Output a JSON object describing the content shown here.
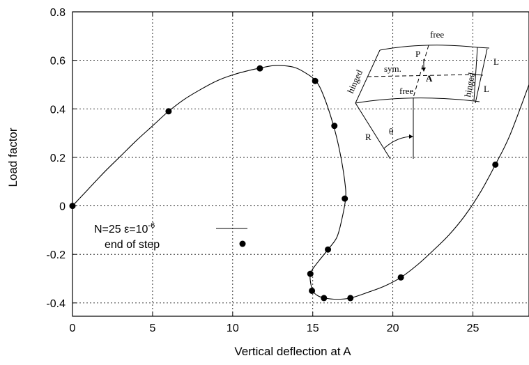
{
  "chart_data": {
    "type": "line",
    "xlabel": "Vertical deflection at A",
    "ylabel": "Load factor",
    "xlim": [
      0,
      28.5
    ],
    "ylim": [
      -0.455,
      0.8
    ],
    "xticks": [
      0,
      5,
      10,
      15,
      20,
      25
    ],
    "yticks": [
      -0.4,
      -0.2,
      0,
      0.2,
      0.4,
      0.6,
      0.8
    ],
    "ytick_labels": [
      "-0.4",
      "-0.2",
      "0",
      "0.2",
      "0.4",
      "0.6",
      "0.8"
    ],
    "grid": true,
    "series": [
      {
        "name": "N=25 ε=10-6",
        "style": "line",
        "x": [
          0,
          1.0,
          2.0,
          3.0,
          4.0,
          5.0,
          6.0,
          7.0,
          8.0,
          9.0,
          10.0,
          11.0,
          11.7,
          12.5,
          13.2,
          13.9,
          14.5,
          15.2,
          15.7,
          16.3,
          16.7,
          17.0,
          17.05,
          16.8,
          16.5,
          15.95,
          15.4,
          15.0,
          14.85,
          14.85,
          15.0,
          15.3,
          15.75,
          16.5,
          17.35,
          18.5,
          19.5,
          20.5,
          21.5,
          22.5,
          23.5,
          24.5,
          25.5,
          26.4,
          27.3,
          28.5
        ],
        "y": [
          0,
          0.07,
          0.14,
          0.205,
          0.27,
          0.33,
          0.39,
          0.44,
          0.48,
          0.515,
          0.54,
          0.558,
          0.568,
          0.578,
          0.578,
          0.57,
          0.55,
          0.515,
          0.45,
          0.33,
          0.22,
          0.1,
          0.03,
          -0.06,
          -0.13,
          -0.18,
          -0.225,
          -0.26,
          -0.28,
          -0.31,
          -0.35,
          -0.37,
          -0.38,
          -0.385,
          -0.38,
          -0.355,
          -0.33,
          -0.295,
          -0.245,
          -0.185,
          -0.12,
          -0.04,
          0.06,
          0.17,
          0.29,
          0.5
        ]
      },
      {
        "name": "end of step",
        "style": "markers",
        "x": [
          0,
          6.0,
          11.7,
          15.15,
          16.35,
          17.0,
          15.95,
          14.85,
          14.95,
          15.7,
          17.35,
          20.5,
          26.4
        ],
        "y": [
          0,
          0.39,
          0.567,
          0.515,
          0.33,
          0.03,
          -0.18,
          -0.28,
          -0.35,
          -0.38,
          -0.38,
          -0.295,
          0.17
        ]
      }
    ],
    "legend": {
      "position": "lower-left",
      "line_label": "N=25 ε=10",
      "line_label_exponent": "-6",
      "marker_label": "end of step"
    },
    "inset": {
      "labels": {
        "free_top": "free",
        "free_bottom": "free",
        "hinged_left": "hinged",
        "hinged_right": "hinged",
        "load": "P",
        "sym": "sym.",
        "point": "A",
        "length_upper": "L",
        "length_lower": "L",
        "radius": "R",
        "angle": "θ"
      }
    }
  }
}
